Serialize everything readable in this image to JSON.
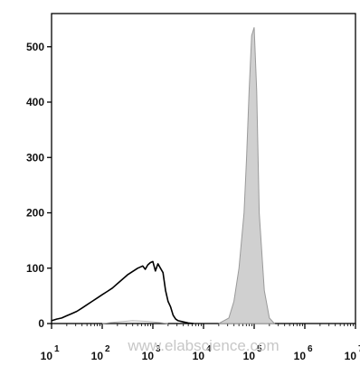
{
  "chart_data": {
    "type": "area",
    "title": "",
    "xlabel": "",
    "ylabel": "",
    "xscale": "log",
    "xlim": [
      1,
      7
    ],
    "ylim": [
      0,
      560
    ],
    "grid": false,
    "legend": "none",
    "y_ticks": [
      0,
      100,
      200,
      300,
      400,
      500
    ],
    "y_tick_labels": [
      "0",
      "100",
      "200",
      "300",
      "400",
      "500"
    ],
    "x_ticks": [
      {
        "exp": 1,
        "base": "10",
        "sup": "1"
      },
      {
        "exp": 2,
        "base": "10",
        "sup": "2"
      },
      {
        "exp": 3,
        "base": "10",
        "sup": "3"
      },
      {
        "exp": 4,
        "base": "10",
        "sup": "4"
      },
      {
        "exp": 5,
        "base": "10",
        "sup": "5"
      },
      {
        "exp": 6,
        "base": "10",
        "sup": "6"
      },
      {
        "exp": 7,
        "base": "10",
        "sup": "7"
      }
    ],
    "series": [
      {
        "style": "outline",
        "color": "#000000",
        "x": [
          1.0,
          1.1,
          1.2,
          1.3,
          1.4,
          1.5,
          1.6,
          1.7,
          1.8,
          1.9,
          2.0,
          2.1,
          2.2,
          2.3,
          2.4,
          2.5,
          2.6,
          2.7,
          2.8,
          2.85,
          2.9,
          2.95,
          3.0,
          3.05,
          3.1,
          3.15,
          3.2,
          3.25,
          3.3,
          3.35,
          3.4,
          3.45,
          3.5,
          3.6,
          3.7,
          3.8
        ],
        "y": [
          5,
          8,
          10,
          14,
          18,
          22,
          28,
          34,
          40,
          46,
          52,
          58,
          64,
          72,
          80,
          88,
          94,
          100,
          104,
          98,
          106,
          110,
          112,
          95,
          108,
          100,
          92,
          60,
          40,
          30,
          15,
          8,
          5,
          3,
          1,
          0
        ]
      },
      {
        "style": "outline",
        "color": "#b0b0b0",
        "x": [
          2.0,
          2.3,
          2.6,
          2.9,
          3.1,
          3.3
        ],
        "y": [
          0,
          3,
          5,
          4,
          2,
          0
        ]
      },
      {
        "style": "filled",
        "color": "#d0d0d0",
        "stroke": "#9a9a9a",
        "x": [
          4.3,
          4.5,
          4.6,
          4.7,
          4.8,
          4.85,
          4.9,
          4.95,
          5.0,
          5.05,
          5.1,
          5.2,
          5.3,
          5.4
        ],
        "y": [
          0,
          10,
          40,
          100,
          200,
          300,
          420,
          520,
          535,
          420,
          200,
          60,
          10,
          0
        ]
      }
    ]
  },
  "watermark": "www.elabscience.com"
}
